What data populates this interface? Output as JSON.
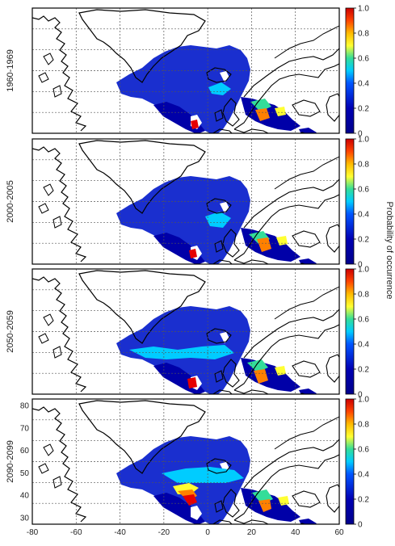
{
  "panels": [
    {
      "period": "1960-1969"
    },
    {
      "period": "2000-2005"
    },
    {
      "period": "2050-2059"
    },
    {
      "period": "2090-2099"
    }
  ],
  "x_ticks": [
    "-80",
    "-60",
    "-40",
    "-20",
    "0",
    "20",
    "40",
    "60"
  ],
  "y_ticks": [
    "80",
    "70",
    "60",
    "50",
    "40",
    "30"
  ],
  "colorbar": {
    "label": "Probability of occurrence",
    "ticks": [
      "1.0",
      "0.8",
      "0.6",
      "0.4",
      "0.2",
      "0"
    ],
    "colors": [
      "#e60000",
      "#ff8000",
      "#ffff33",
      "#33cc99",
      "#0077ff",
      "#0000b3",
      "#00008b"
    ]
  }
}
